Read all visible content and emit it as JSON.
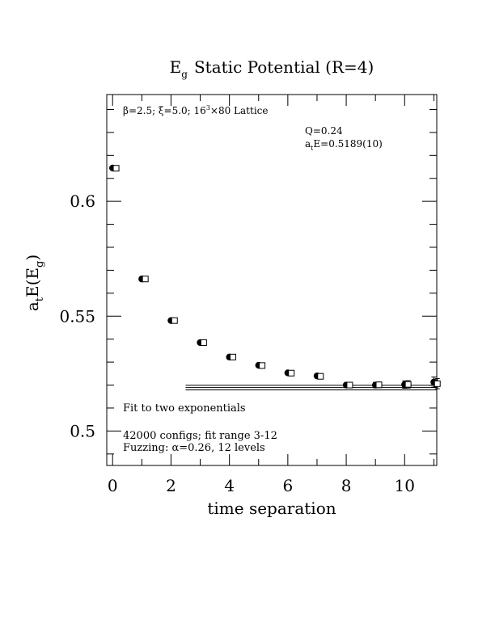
{
  "chart_data": {
    "type": "scatter",
    "title_main": "E",
    "title_sub": "g",
    "title_rest": "Static Potential (R=4)",
    "xlabel": "time separation",
    "ylabel_main": "a",
    "ylabel_sub1": "t",
    "ylabel_mid": "E(E",
    "ylabel_sub2": "g",
    "ylabel_end": ")",
    "xlim": [
      -0.2,
      11.1
    ],
    "ylim": [
      0.485,
      0.6465
    ],
    "x_ticks": [
      "0",
      "2",
      "4",
      "6",
      "8",
      "10"
    ],
    "y_ticks": [
      "0.5",
      "0.55",
      "0.6"
    ],
    "annotations": {
      "lattice_beta": "β=2.5; ξ=5.0; 16",
      "lattice_exp": "3",
      "lattice_rest": "×80 Lattice",
      "q": "Q=0.24",
      "energy_a": "a",
      "energy_sub": "t",
      "energy_rest": "E=0.5189(10)",
      "fit": "Fit to two exponentials",
      "configs": "42000 configs; fit range 3-12",
      "fuzzing": "Fuzzing: α=0.26, 12 levels"
    },
    "series": [
      {
        "marker": "filled-circle",
        "x": [
          0,
          1,
          2,
          3,
          4,
          5,
          6,
          7,
          8,
          9,
          10,
          11
        ],
        "y": [
          0.6145,
          0.5662,
          0.5481,
          0.5385,
          0.5322,
          0.5286,
          0.5253,
          0.524,
          0.52,
          0.52,
          0.5202,
          0.5213
        ],
        "err": [
          0.0004,
          0.0004,
          0.0004,
          0.0004,
          0.0005,
          0.0005,
          0.0006,
          0.0007,
          0.0009,
          0.0012,
          0.0016,
          0.0022
        ]
      },
      {
        "marker": "open-square",
        "x": [
          0.12,
          1.12,
          2.12,
          3.12,
          4.12,
          5.12,
          6.12,
          7.12,
          8.12,
          9.12,
          10.12,
          11.12
        ],
        "y": [
          0.6144,
          0.5662,
          0.5481,
          0.5385,
          0.5322,
          0.5285,
          0.5252,
          0.5238,
          0.52,
          0.5201,
          0.5203,
          0.5206
        ],
        "err": [
          0.0004,
          0.0004,
          0.0004,
          0.0004,
          0.0005,
          0.0005,
          0.0006,
          0.0007,
          0.0009,
          0.0012,
          0.0016,
          0.0022
        ]
      }
    ],
    "fit_band": {
      "x_range": [
        2.5,
        11.1
      ],
      "center": 0.5189,
      "error": 0.001
    }
  }
}
